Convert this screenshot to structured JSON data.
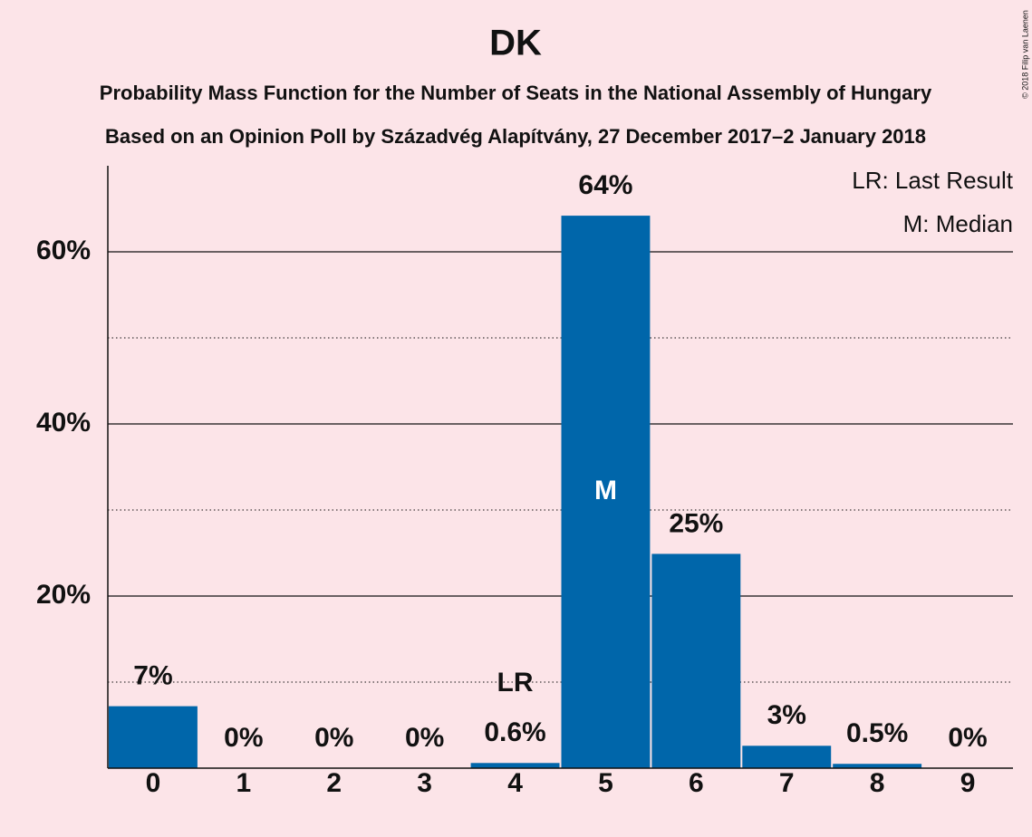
{
  "chart_data": {
    "type": "bar",
    "title": "DK",
    "subtitle": "Probability Mass Function for the Number of Seats in the National Assembly of Hungary",
    "subtitle2": "Based on an Opinion Poll by Századvég Alapítvány, 27 December 2017–2 January 2018",
    "copyright": "© 2018 Filip van Laenen",
    "categories": [
      "0",
      "1",
      "2",
      "3",
      "4",
      "5",
      "6",
      "7",
      "8",
      "9"
    ],
    "values": [
      7.2,
      0,
      0,
      0,
      0.6,
      64.2,
      24.9,
      2.6,
      0.5,
      0
    ],
    "value_labels": [
      "7%",
      "0%",
      "0%",
      "0%",
      "0.6%",
      "64%",
      "25%",
      "3%",
      "0.5%",
      "0%"
    ],
    "color": "#0066aa",
    "ylim": [
      0,
      70
    ],
    "yticks": [
      {
        "value": 20,
        "label": "20%"
      },
      {
        "value": 40,
        "label": "40%"
      },
      {
        "value": 60,
        "label": "60%"
      }
    ],
    "minor_yticks": [
      10,
      30,
      50
    ],
    "grid": true,
    "annotations": [
      {
        "x": "4",
        "text": "LR",
        "position": "above"
      },
      {
        "x": "5",
        "text": "M",
        "position": "inside"
      }
    ],
    "legend": [
      "LR: Last Result",
      "M: Median"
    ],
    "legend_position": "top-right"
  }
}
